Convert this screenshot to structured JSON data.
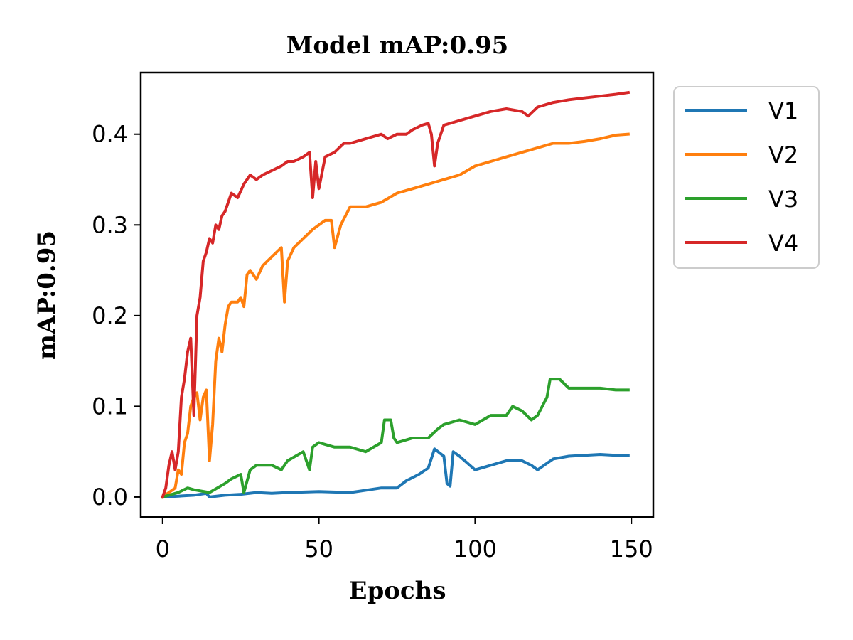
{
  "chart_data": {
    "type": "line",
    "title": "Model mAP:0.95",
    "xlabel": "Epochs",
    "ylabel": "mAP:0.95",
    "xlim": [
      -7,
      157
    ],
    "ylim": [
      -0.022,
      0.468
    ],
    "x_ticks": [
      0,
      50,
      100,
      150
    ],
    "x_tick_labels": [
      "0",
      "50",
      "100",
      "150"
    ],
    "y_ticks": [
      0.0,
      0.1,
      0.2,
      0.3,
      0.4
    ],
    "y_tick_labels": [
      "0.0",
      "0.1",
      "0.2",
      "0.3",
      "0.4"
    ],
    "grid": false,
    "legend_position": "outside-right-top",
    "series": [
      {
        "name": "V1",
        "color": "#1f77b4",
        "points": [
          [
            0,
            0.0
          ],
          [
            5,
            0.001
          ],
          [
            10,
            0.002
          ],
          [
            14,
            0.004
          ],
          [
            15,
            0.0
          ],
          [
            20,
            0.002
          ],
          [
            25,
            0.003
          ],
          [
            30,
            0.005
          ],
          [
            35,
            0.004
          ],
          [
            40,
            0.005
          ],
          [
            50,
            0.006
          ],
          [
            60,
            0.005
          ],
          [
            70,
            0.01
          ],
          [
            75,
            0.01
          ],
          [
            78,
            0.018
          ],
          [
            82,
            0.025
          ],
          [
            85,
            0.032
          ],
          [
            87,
            0.053
          ],
          [
            90,
            0.045
          ],
          [
            91,
            0.015
          ],
          [
            92,
            0.012
          ],
          [
            93,
            0.05
          ],
          [
            95,
            0.045
          ],
          [
            100,
            0.03
          ],
          [
            105,
            0.035
          ],
          [
            110,
            0.04
          ],
          [
            115,
            0.04
          ],
          [
            118,
            0.035
          ],
          [
            120,
            0.03
          ],
          [
            125,
            0.042
          ],
          [
            130,
            0.045
          ],
          [
            135,
            0.046
          ],
          [
            140,
            0.047
          ],
          [
            145,
            0.046
          ],
          [
            149,
            0.046
          ]
        ]
      },
      {
        "name": "V2",
        "color": "#ff7f0e",
        "points": [
          [
            0,
            0.0
          ],
          [
            2,
            0.005
          ],
          [
            4,
            0.01
          ],
          [
            5,
            0.03
          ],
          [
            6,
            0.025
          ],
          [
            7,
            0.06
          ],
          [
            8,
            0.07
          ],
          [
            9,
            0.1
          ],
          [
            10,
            0.11
          ],
          [
            11,
            0.115
          ],
          [
            12,
            0.085
          ],
          [
            13,
            0.11
          ],
          [
            14,
            0.118
          ],
          [
            15,
            0.04
          ],
          [
            16,
            0.08
          ],
          [
            17,
            0.15
          ],
          [
            18,
            0.175
          ],
          [
            19,
            0.16
          ],
          [
            20,
            0.19
          ],
          [
            21,
            0.21
          ],
          [
            22,
            0.215
          ],
          [
            24,
            0.215
          ],
          [
            25,
            0.22
          ],
          [
            26,
            0.21
          ],
          [
            27,
            0.245
          ],
          [
            28,
            0.25
          ],
          [
            30,
            0.24
          ],
          [
            32,
            0.255
          ],
          [
            35,
            0.265
          ],
          [
            38,
            0.275
          ],
          [
            39,
            0.215
          ],
          [
            40,
            0.26
          ],
          [
            42,
            0.275
          ],
          [
            45,
            0.285
          ],
          [
            48,
            0.295
          ],
          [
            50,
            0.3
          ],
          [
            52,
            0.305
          ],
          [
            54,
            0.305
          ],
          [
            55,
            0.275
          ],
          [
            57,
            0.3
          ],
          [
            60,
            0.32
          ],
          [
            65,
            0.32
          ],
          [
            70,
            0.325
          ],
          [
            75,
            0.335
          ],
          [
            80,
            0.34
          ],
          [
            85,
            0.345
          ],
          [
            90,
            0.35
          ],
          [
            95,
            0.355
          ],
          [
            100,
            0.365
          ],
          [
            105,
            0.37
          ],
          [
            110,
            0.375
          ],
          [
            115,
            0.38
          ],
          [
            120,
            0.385
          ],
          [
            125,
            0.39
          ],
          [
            130,
            0.39
          ],
          [
            135,
            0.392
          ],
          [
            140,
            0.395
          ],
          [
            145,
            0.399
          ],
          [
            149,
            0.4
          ]
        ]
      },
      {
        "name": "V3",
        "color": "#2ca02c",
        "points": [
          [
            0,
            0.0
          ],
          [
            5,
            0.005
          ],
          [
            8,
            0.01
          ],
          [
            10,
            0.008
          ],
          [
            15,
            0.005
          ],
          [
            20,
            0.015
          ],
          [
            22,
            0.02
          ],
          [
            25,
            0.025
          ],
          [
            26,
            0.005
          ],
          [
            28,
            0.03
          ],
          [
            30,
            0.035
          ],
          [
            35,
            0.035
          ],
          [
            38,
            0.03
          ],
          [
            40,
            0.04
          ],
          [
            45,
            0.05
          ],
          [
            47,
            0.03
          ],
          [
            48,
            0.055
          ],
          [
            50,
            0.06
          ],
          [
            55,
            0.055
          ],
          [
            60,
            0.055
          ],
          [
            65,
            0.05
          ],
          [
            70,
            0.06
          ],
          [
            71,
            0.085
          ],
          [
            73,
            0.085
          ],
          [
            74,
            0.065
          ],
          [
            75,
            0.06
          ],
          [
            80,
            0.065
          ],
          [
            85,
            0.065
          ],
          [
            88,
            0.075
          ],
          [
            90,
            0.08
          ],
          [
            95,
            0.085
          ],
          [
            100,
            0.08
          ],
          [
            105,
            0.09
          ],
          [
            110,
            0.09
          ],
          [
            112,
            0.1
          ],
          [
            115,
            0.095
          ],
          [
            118,
            0.085
          ],
          [
            120,
            0.09
          ],
          [
            123,
            0.11
          ],
          [
            124,
            0.13
          ],
          [
            127,
            0.13
          ],
          [
            130,
            0.12
          ],
          [
            135,
            0.12
          ],
          [
            140,
            0.12
          ],
          [
            145,
            0.118
          ],
          [
            149,
            0.118
          ]
        ]
      },
      {
        "name": "V4",
        "color": "#d62728",
        "points": [
          [
            0,
            0.0
          ],
          [
            1,
            0.01
          ],
          [
            2,
            0.035
          ],
          [
            3,
            0.05
          ],
          [
            4,
            0.03
          ],
          [
            5,
            0.05
          ],
          [
            6,
            0.11
          ],
          [
            7,
            0.13
          ],
          [
            8,
            0.16
          ],
          [
            9,
            0.175
          ],
          [
            10,
            0.09
          ],
          [
            11,
            0.2
          ],
          [
            12,
            0.22
          ],
          [
            13,
            0.26
          ],
          [
            14,
            0.27
          ],
          [
            15,
            0.285
          ],
          [
            16,
            0.28
          ],
          [
            17,
            0.3
          ],
          [
            18,
            0.295
          ],
          [
            19,
            0.31
          ],
          [
            20,
            0.315
          ],
          [
            22,
            0.335
          ],
          [
            24,
            0.33
          ],
          [
            26,
            0.345
          ],
          [
            28,
            0.355
          ],
          [
            30,
            0.35
          ],
          [
            32,
            0.355
          ],
          [
            35,
            0.36
          ],
          [
            38,
            0.365
          ],
          [
            40,
            0.37
          ],
          [
            42,
            0.37
          ],
          [
            45,
            0.375
          ],
          [
            47,
            0.38
          ],
          [
            48,
            0.33
          ],
          [
            49,
            0.37
          ],
          [
            50,
            0.34
          ],
          [
            52,
            0.375
          ],
          [
            55,
            0.38
          ],
          [
            58,
            0.39
          ],
          [
            60,
            0.39
          ],
          [
            65,
            0.395
          ],
          [
            70,
            0.4
          ],
          [
            72,
            0.395
          ],
          [
            75,
            0.4
          ],
          [
            78,
            0.4
          ],
          [
            80,
            0.405
          ],
          [
            83,
            0.41
          ],
          [
            85,
            0.412
          ],
          [
            86,
            0.4
          ],
          [
            87,
            0.365
          ],
          [
            88,
            0.39
          ],
          [
            90,
            0.41
          ],
          [
            95,
            0.415
          ],
          [
            100,
            0.42
          ],
          [
            105,
            0.425
          ],
          [
            110,
            0.428
          ],
          [
            115,
            0.425
          ],
          [
            117,
            0.42
          ],
          [
            120,
            0.43
          ],
          [
            125,
            0.435
          ],
          [
            130,
            0.438
          ],
          [
            135,
            0.44
          ],
          [
            140,
            0.442
          ],
          [
            145,
            0.444
          ],
          [
            149,
            0.446
          ]
        ]
      }
    ]
  }
}
